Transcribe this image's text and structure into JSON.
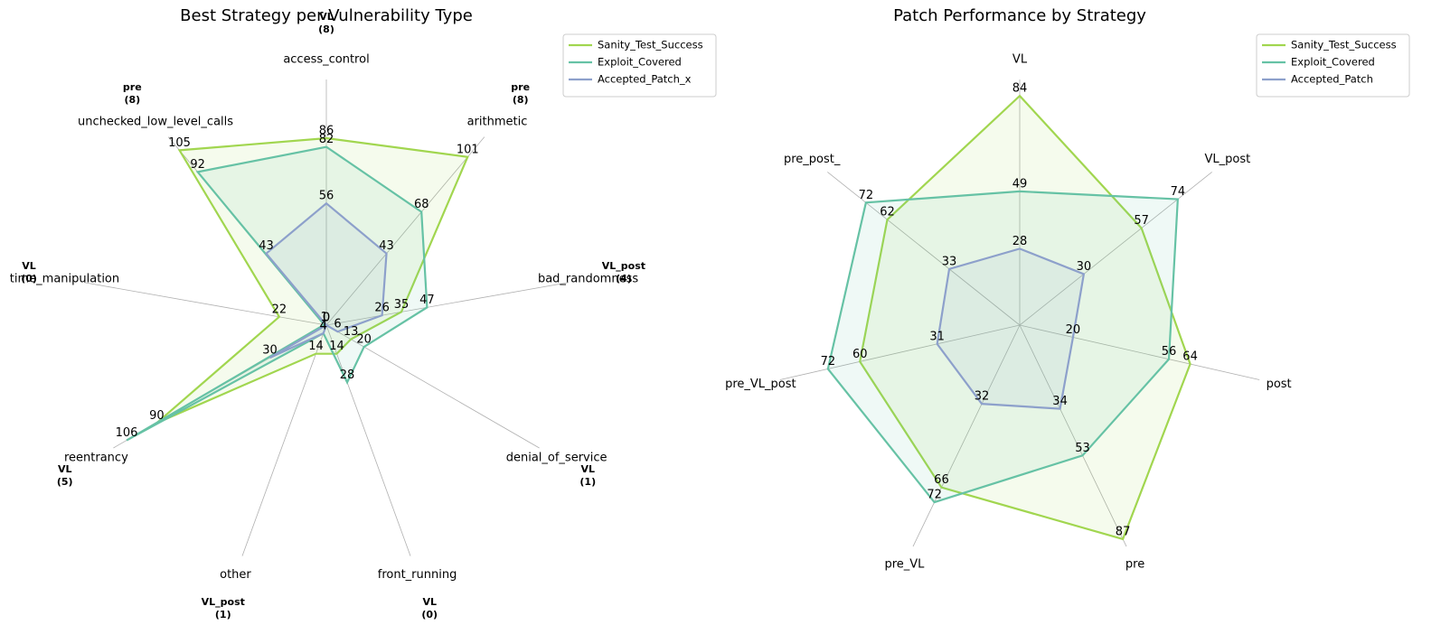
{
  "chart_data": [
    {
      "type": "radar",
      "title": "Best Strategy per Vulnerability Type",
      "categories": [
        "access_control",
        "arithmetic",
        "bad_randomness",
        "denial_of_service",
        "front_running",
        "other",
        "reentrancy",
        "time_manipulation",
        "unchecked_low_level_calls"
      ],
      "annotations": [
        [
          "VL",
          "(8)"
        ],
        [
          "pre",
          "(8)"
        ],
        [
          "VL_post",
          "(4)"
        ],
        [
          "VL",
          "(1)"
        ],
        [
          "VL",
          "(0)"
        ],
        [
          "VL_post",
          "(1)"
        ],
        [
          "VL",
          "(5)"
        ],
        [
          "VL",
          "(0)"
        ],
        [
          "pre",
          "(8)"
        ]
      ],
      "rlim": [
        0,
        113
      ],
      "legend": "upper right",
      "series": [
        {
          "name": "Sanity_Test_Success",
          "color": "#a1d64f",
          "values": [
            86,
            101,
            35,
            13,
            14,
            14,
            90,
            22,
            105
          ]
        },
        {
          "name": "Exploit_Covered",
          "color": "#66c2a5",
          "values": [
            82,
            68,
            47,
            20,
            28,
            4,
            106,
            1,
            92
          ]
        },
        {
          "name": "Accepted_Patch_x",
          "color": "#8da0cb",
          "values": [
            56,
            43,
            26,
            6,
            0,
            4,
            30,
            0,
            43
          ]
        }
      ]
    },
    {
      "type": "radar",
      "title": "Patch Performance by Strategy",
      "categories": [
        "VL",
        "VL_post",
        "post",
        "pre",
        "pre_VL",
        "pre_VL_post",
        "pre_post_"
      ],
      "rlim": [
        0,
        90
      ],
      "legend": "upper right",
      "series": [
        {
          "name": "Sanity_Test_Success",
          "color": "#a1d64f",
          "values": [
            84,
            57,
            64,
            87,
            66,
            60,
            62
          ]
        },
        {
          "name": "Exploit_Covered",
          "color": "#66c2a5",
          "values": [
            49,
            74,
            56,
            53,
            72,
            72,
            72
          ]
        },
        {
          "name": "Accepted_Patch",
          "color": "#8da0cb",
          "values": [
            28,
            30,
            20,
            34,
            32,
            31,
            33
          ]
        }
      ]
    }
  ]
}
